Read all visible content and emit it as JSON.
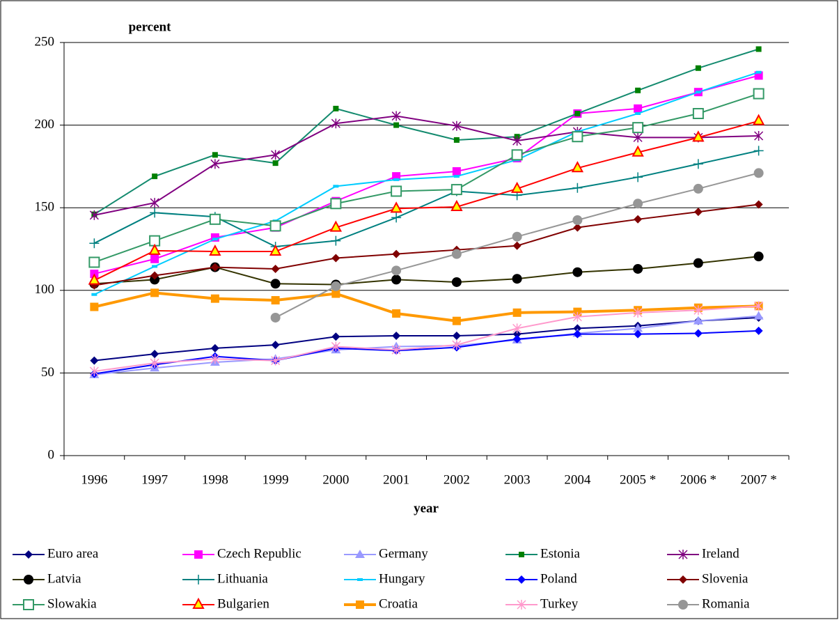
{
  "chart_data": {
    "type": "line",
    "y_label": "percent",
    "x_label": "year",
    "categories": [
      "1996",
      "1997",
      "1998",
      "1999",
      "2000",
      "2001",
      "2002",
      "2003",
      "2004",
      "2005 *",
      "2006 *",
      "2007 *"
    ],
    "ylim": [
      0,
      250
    ],
    "yticks": [
      0,
      50,
      100,
      150,
      200,
      250
    ],
    "grid": true,
    "legend": "bottom",
    "series": [
      {
        "name": "Euro area",
        "color": "#000080",
        "marker": "diamond",
        "values": [
          57.5,
          61.5,
          65,
          67,
          72,
          72.5,
          72.5,
          73.5,
          77,
          78.5,
          81.5,
          83.5
        ]
      },
      {
        "name": "Czech Republic",
        "color": "#ff00ff",
        "marker": "square",
        "values": [
          110,
          119,
          132,
          138,
          154,
          169,
          172,
          180,
          207,
          210,
          220,
          230
        ]
      },
      {
        "name": "Germany",
        "color": "#9999ff",
        "marker": "triangle",
        "values": [
          49,
          53,
          56.5,
          58.5,
          64,
          66,
          66.5,
          70,
          74,
          77,
          81.5,
          84.5
        ]
      },
      {
        "name": "Estonia",
        "color": "#138a6e",
        "marker": "square-small",
        "values": [
          146,
          169,
          182,
          177,
          210,
          200,
          191,
          193,
          207,
          221,
          234.5,
          246
        ]
      },
      {
        "name": "Ireland",
        "color": "#800080",
        "marker": "asterisk",
        "values": [
          145.5,
          153,
          176.5,
          182,
          201,
          205.5,
          199.5,
          190.5,
          196,
          192.5,
          192.5,
          193.5
        ]
      },
      {
        "name": "Latvia",
        "color": "#333300",
        "marker": "circle",
        "values": [
          104,
          106.5,
          114,
          104,
          103.5,
          106.5,
          105,
          107,
          111,
          113,
          116.5,
          120.5
        ]
      },
      {
        "name": "Lithuania",
        "color": "#008080",
        "marker": "plus",
        "values": [
          128.5,
          147,
          144.5,
          126.5,
          130,
          144,
          160,
          157.5,
          162,
          168.5,
          176.5,
          184.5
        ]
      },
      {
        "name": "Hungary",
        "color": "#00ccff",
        "marker": "dash",
        "values": [
          97.5,
          114.5,
          131,
          142,
          163,
          167,
          169,
          179,
          196,
          207,
          220,
          232
        ]
      },
      {
        "name": "Poland",
        "color": "#0000ff",
        "marker": "diamond",
        "values": [
          49.5,
          55,
          60,
          57.5,
          65,
          63.5,
          65.5,
          70.5,
          73.5,
          73.5,
          74,
          75.5
        ]
      },
      {
        "name": "Slovenia",
        "color": "#800000",
        "marker": "diamond",
        "values": [
          103,
          109,
          114,
          113,
          119.5,
          122,
          124.5,
          127,
          138,
          143,
          147.5,
          152
        ]
      },
      {
        "name": "Slowakia",
        "color": "#339966",
        "marker": "square-open",
        "values": [
          117,
          130,
          143,
          139,
          152.5,
          160,
          161,
          182,
          193,
          198.5,
          207,
          219
        ]
      },
      {
        "name": "Bulgarien",
        "color": "#ff0000",
        "marker": "triangle-open",
        "values": [
          106,
          124,
          123.5,
          123.5,
          138,
          149.5,
          150.5,
          161.5,
          174,
          183.5,
          192.5,
          202.5
        ]
      },
      {
        "name": "Croatia",
        "color": "#ff9900",
        "marker": "square",
        "line_width": 4,
        "values": [
          90,
          98.5,
          95,
          94,
          98,
          86,
          81.5,
          86.5,
          87,
          88,
          89.5,
          90.5
        ]
      },
      {
        "name": "Turkey",
        "color": "#ff99cc",
        "marker": "asterisk",
        "values": [
          51,
          56,
          58.5,
          57.5,
          66,
          64,
          67,
          77,
          84,
          86.5,
          88,
          90.5
        ]
      },
      {
        "name": "Romania",
        "color": "#969696",
        "marker": "circle",
        "values": [
          null,
          null,
          null,
          83.5,
          102.5,
          112,
          122,
          132.5,
          142.5,
          152.5,
          161.5,
          171
        ]
      }
    ]
  }
}
